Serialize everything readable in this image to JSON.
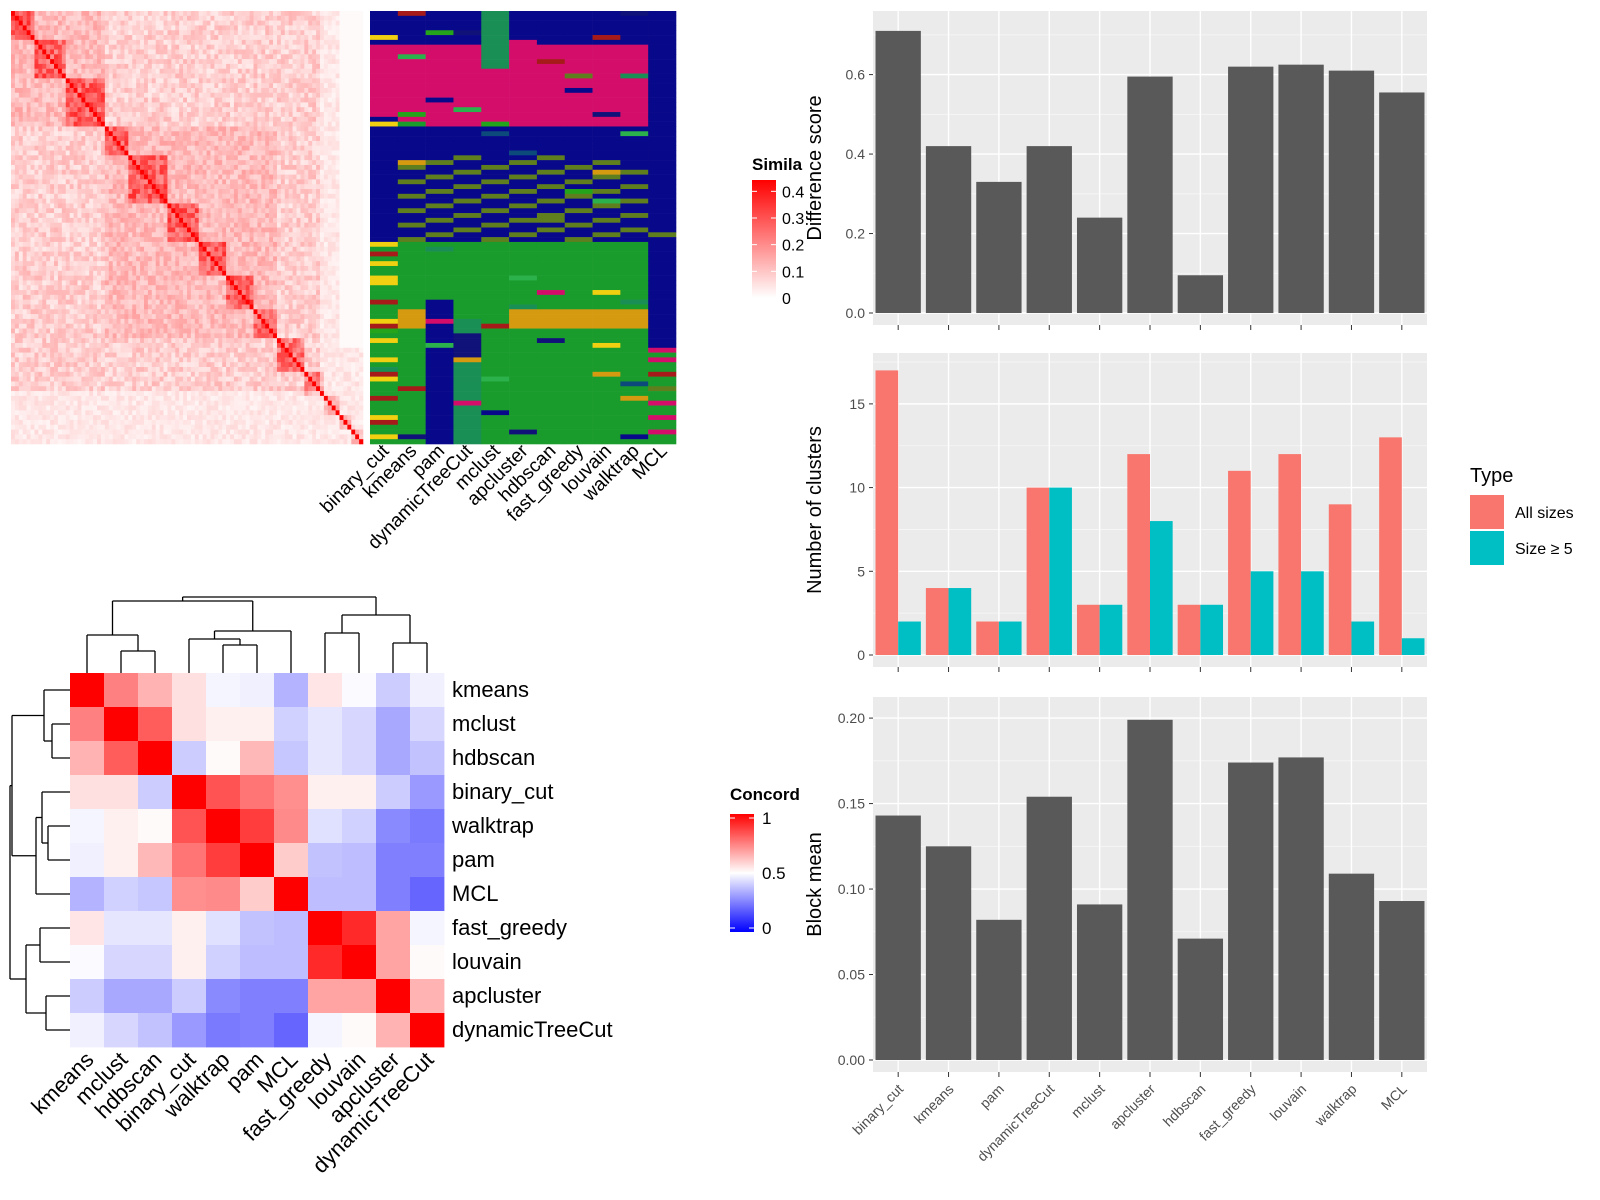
{
  "colors": {
    "sim_low": "#ffffff",
    "sim_high": "#ff0000",
    "conc_low": "#0000ff",
    "conc_mid": "#ffffff",
    "conc_high": "#ff0000",
    "bar_dark": "#595959",
    "type_all": "#f8766d",
    "type_size5": "#00bfc4",
    "panel_bg": "#ebebeb",
    "class_palette": [
      "#08088a",
      "#d40d6b",
      "#1a9c2c",
      "#5f7f1f",
      "#23a41b",
      "#1a8f55",
      "#d69a10",
      "#a61a1a",
      "#0c4a7c",
      "#f0d010",
      "#11117a",
      "#2bb24c"
    ]
  },
  "top_left": {
    "similarity_legend": {
      "title": "Simila",
      "ticks": [
        "0.4",
        "0.3",
        "0.2",
        "0.1",
        "0"
      ],
      "tick_values": [
        0.4,
        0.3,
        0.2,
        0.1,
        0
      ]
    },
    "class_columns": [
      "binary_cut",
      "kmeans",
      "pam",
      "dynamicTreeCut",
      "mclust",
      "apcluster",
      "hdbscan",
      "fast_greedy",
      "louvain",
      "walktrap",
      "MCL"
    ]
  },
  "concordance_heatmap": {
    "labels": [
      "kmeans",
      "mclust",
      "hdbscan",
      "binary_cut",
      "walktrap",
      "pam",
      "MCL",
      "fast_greedy",
      "louvain",
      "apcluster",
      "dynamicTreeCut"
    ],
    "legend": {
      "title": "Concord",
      "ticks": [
        "1",
        "0.5",
        "0"
      ],
      "tick_values": [
        1,
        0.5,
        0
      ]
    },
    "chart_data": {
      "type": "heatmap",
      "rows": [
        "kmeans",
        "mclust",
        "hdbscan",
        "binary_cut",
        "walktrap",
        "pam",
        "MCL",
        "fast_greedy",
        "louvain",
        "apcluster",
        "dynamicTreeCut"
      ],
      "cols": [
        "kmeans",
        "mclust",
        "hdbscan",
        "binary_cut",
        "walktrap",
        "pam",
        "MCL",
        "fast_greedy",
        "louvain",
        "apcluster",
        "dynamicTreeCut"
      ],
      "range": [
        0,
        1
      ],
      "values": [
        [
          1.0,
          0.75,
          0.65,
          0.56,
          0.48,
          0.47,
          0.35,
          0.55,
          0.49,
          0.4,
          0.47
        ],
        [
          0.75,
          1.0,
          0.82,
          0.56,
          0.53,
          0.53,
          0.41,
          0.45,
          0.42,
          0.33,
          0.42
        ],
        [
          0.65,
          0.82,
          1.0,
          0.4,
          0.51,
          0.64,
          0.39,
          0.45,
          0.42,
          0.33,
          0.38
        ],
        [
          0.56,
          0.56,
          0.4,
          1.0,
          0.84,
          0.77,
          0.72,
          0.53,
          0.53,
          0.4,
          0.3
        ],
        [
          0.48,
          0.53,
          0.51,
          0.84,
          1.0,
          0.88,
          0.73,
          0.44,
          0.41,
          0.27,
          0.24
        ],
        [
          0.47,
          0.53,
          0.64,
          0.77,
          0.88,
          1.0,
          0.6,
          0.38,
          0.37,
          0.25,
          0.25
        ],
        [
          0.35,
          0.41,
          0.39,
          0.72,
          0.73,
          0.6,
          1.0,
          0.37,
          0.37,
          0.25,
          0.2
        ],
        [
          0.55,
          0.45,
          0.45,
          0.53,
          0.44,
          0.38,
          0.37,
          1.0,
          0.92,
          0.68,
          0.48
        ],
        [
          0.49,
          0.42,
          0.42,
          0.53,
          0.41,
          0.37,
          0.37,
          0.92,
          1.0,
          0.68,
          0.51
        ],
        [
          0.4,
          0.33,
          0.33,
          0.4,
          0.27,
          0.25,
          0.25,
          0.68,
          0.68,
          1.0,
          0.65
        ],
        [
          0.47,
          0.42,
          0.38,
          0.3,
          0.24,
          0.25,
          0.2,
          0.48,
          0.51,
          0.65,
          1.0
        ]
      ]
    }
  },
  "right_charts": {
    "categories": [
      "binary_cut",
      "kmeans",
      "pam",
      "dynamicTreeCut",
      "mclust",
      "apcluster",
      "hdbscan",
      "fast_greedy",
      "louvain",
      "walktrap",
      "MCL"
    ],
    "legend": {
      "title": "Type",
      "entries": [
        "All sizes",
        "Size ≥ 5"
      ]
    },
    "chart_data": [
      {
        "type": "bar",
        "categories": [
          "binary_cut",
          "kmeans",
          "pam",
          "dynamicTreeCut",
          "mclust",
          "apcluster",
          "hdbscan",
          "fast_greedy",
          "louvain",
          "walktrap",
          "MCL"
        ],
        "values": [
          0.71,
          0.42,
          0.33,
          0.42,
          0.24,
          0.595,
          0.095,
          0.62,
          0.625,
          0.61,
          0.555
        ],
        "ylabel": "Difference score",
        "ylim": [
          0,
          0.75
        ],
        "yticks": [
          "0.0",
          "0.2",
          "0.4",
          "0.6"
        ],
        "ytick_values": [
          0,
          0.2,
          0.4,
          0.6
        ],
        "grid": true
      },
      {
        "type": "bar",
        "categories": [
          "binary_cut",
          "kmeans",
          "pam",
          "dynamicTreeCut",
          "mclust",
          "apcluster",
          "hdbscan",
          "fast_greedy",
          "louvain",
          "walktrap",
          "MCL"
        ],
        "series": [
          {
            "name": "All sizes",
            "values": [
              17,
              4,
              2,
              10,
              3,
              12,
              3,
              11,
              12,
              9,
              13
            ]
          },
          {
            "name": "Size ≥ 5",
            "values": [
              2,
              4,
              2,
              10,
              3,
              8,
              3,
              5,
              5,
              2,
              1
            ]
          }
        ],
        "ylabel": "Number of clusters",
        "ylim": [
          0,
          17.8
        ],
        "yticks": [
          "0",
          "5",
          "10",
          "15"
        ],
        "ytick_values": [
          0,
          5,
          10,
          15
        ],
        "legend_position": "right",
        "grid": true
      },
      {
        "type": "bar",
        "categories": [
          "binary_cut",
          "kmeans",
          "pam",
          "dynamicTreeCut",
          "mclust",
          "apcluster",
          "hdbscan",
          "fast_greedy",
          "louvain",
          "walktrap",
          "MCL"
        ],
        "values": [
          0.143,
          0.125,
          0.082,
          0.154,
          0.091,
          0.199,
          0.071,
          0.174,
          0.177,
          0.109,
          0.093
        ],
        "ylabel": "Block mean",
        "ylim": [
          0,
          0.21
        ],
        "yticks": [
          "0.00",
          "0.05",
          "0.10",
          "0.15",
          "0.20"
        ],
        "ytick_values": [
          0,
          0.05,
          0.1,
          0.15,
          0.2
        ],
        "grid": true
      }
    ]
  }
}
